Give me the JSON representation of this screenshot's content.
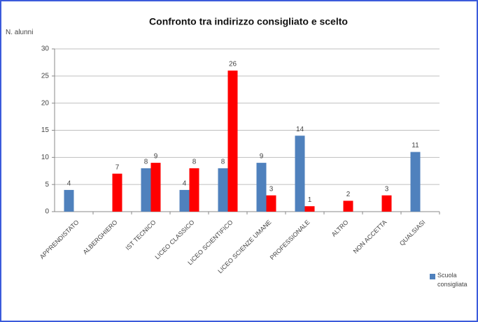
{
  "chart_data": {
    "type": "bar",
    "title": "Confronto tra indirizzo consigliato e scelto",
    "ylabel": "N. alunni",
    "categories": [
      "APPRENDISTATO",
      "ALBERGHIERO",
      "IST TECNICO",
      "LICEO CLASSICO",
      "LICEO SCIENTIFICO",
      "LICEO SCIENZE UMANE",
      "PROFESSIONALE",
      "ALTRO",
      "NON ACCETTA",
      "QUALSIASI"
    ],
    "series": [
      {
        "name": "Scuola consigliata",
        "color": "#4f81bd",
        "values": [
          4,
          null,
          8,
          4,
          8,
          9,
          14,
          null,
          null,
          11
        ]
      },
      {
        "color": "#ff0000",
        "values": [
          null,
          7,
          9,
          8,
          26,
          3,
          1,
          2,
          3,
          null
        ]
      }
    ],
    "ylim": [
      0,
      30
    ],
    "yticks": [
      0,
      5,
      10,
      15,
      20,
      25,
      30
    ],
    "grid": true,
    "legend": "bottom-right"
  }
}
